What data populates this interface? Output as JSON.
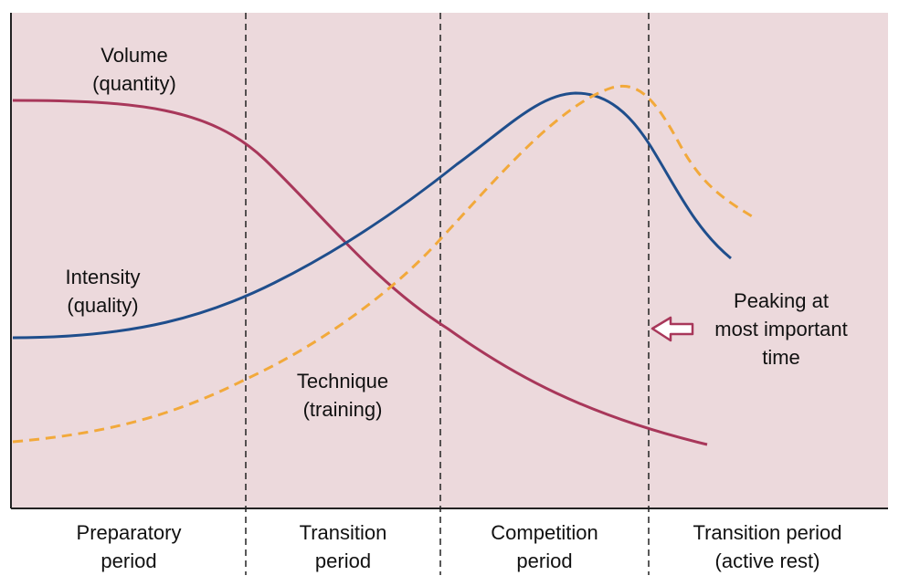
{
  "curves": [
    {
      "id": "volume",
      "label_line1": "Volume",
      "label_line2": "(quantity)",
      "color": "#a8375a",
      "style": "solid"
    },
    {
      "id": "intensity",
      "label_line1": "Intensity",
      "label_line2": "(quality)",
      "color": "#1f4e8c",
      "style": "solid"
    },
    {
      "id": "technique",
      "label_line1": "Technique",
      "label_line2": "(training)",
      "color": "#f2a93b",
      "style": "dashed"
    }
  ],
  "periods": [
    {
      "line1": "Preparatory",
      "line2": "period"
    },
    {
      "line1": "Transition",
      "line2": "period"
    },
    {
      "line1": "Competition",
      "line2": "period"
    },
    {
      "line1": "Transition period",
      "line2": "(active rest)"
    }
  ],
  "annotation": {
    "line1": "Peaking at",
    "line2": "most important",
    "line3": "time",
    "arrow_icon": "left-arrow-icon",
    "arrow_color": "#a8375a"
  },
  "colors": {
    "background": "#ecd9dc",
    "axis": "#222222",
    "divider": "#222222"
  }
}
